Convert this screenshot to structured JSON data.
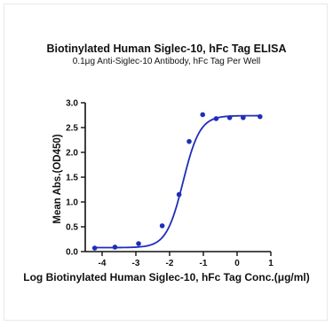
{
  "chart_data": {
    "type": "scatter",
    "title": "Biotinylated Human Siglec-10, hFc Tag ELISA",
    "subtitle": "0.1μg Anti-Siglec-10 Antibody, hFc Tag Per Well",
    "xlabel": "Log Biotinylated Human Siglec-10, hFc Tag Conc.(μg/ml)",
    "ylabel": "Mean Abs.(OD450)",
    "xlim": [
      -4.5,
      1.0
    ],
    "ylim": [
      0,
      3.0
    ],
    "xticks": [
      -4,
      -3,
      -2,
      -1,
      0,
      1
    ],
    "yticks": [
      0.0,
      0.5,
      1.0,
      1.5,
      2.0,
      2.5,
      3.0
    ],
    "ytick_labels": [
      "0.0",
      "0.5",
      "1.0",
      "1.5",
      "2.0",
      "2.5",
      "3.0"
    ],
    "series": [
      {
        "points": [
          [
            -4.22,
            0.07
          ],
          [
            -3.62,
            0.09
          ],
          [
            -2.92,
            0.16
          ],
          [
            -2.22,
            0.52
          ],
          [
            -1.72,
            1.15
          ],
          [
            -1.42,
            2.22
          ],
          [
            -1.02,
            2.76
          ],
          [
            -0.62,
            2.68
          ],
          [
            -0.22,
            2.7
          ],
          [
            0.18,
            2.7
          ],
          [
            0.68,
            2.72
          ]
        ],
        "fit": {
          "model": "4PL",
          "bottom": 0.08,
          "top": 2.74,
          "logEC50": -1.6,
          "hill": 1.75,
          "x_range": [
            -4.22,
            0.68
          ]
        }
      }
    ],
    "colors": {
      "series": "#1f2eb8",
      "axis": "#111111"
    },
    "grid": false,
    "legend": "none"
  }
}
